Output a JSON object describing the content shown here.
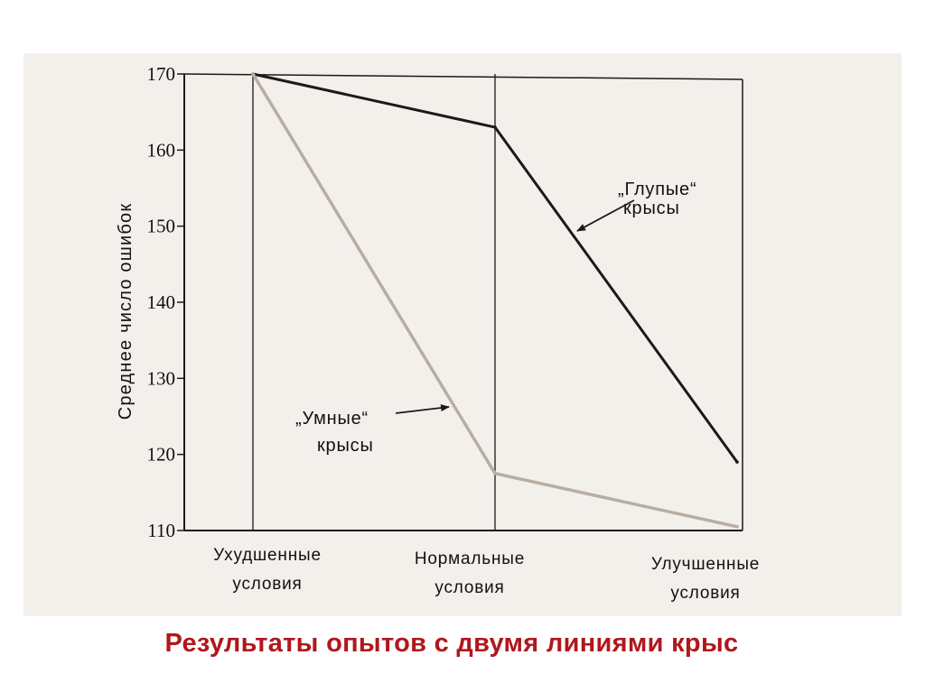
{
  "slide": {
    "caption": "Результаты опытов с двумя линиями крыс"
  },
  "colors": {
    "panel_background": "#f3f0ec",
    "caption": "#b0171d",
    "stupid_line": "#1a1a1a",
    "smart_line": "#b9ada2"
  },
  "chart_data": {
    "type": "line",
    "categories": [
      "Ухудшенные условия",
      "Нормальные условия",
      "Улучшенные условия"
    ],
    "category_labels": [
      [
        "Ухудшенные",
        "условия"
      ],
      [
        "Нормальные",
        "условия"
      ],
      [
        "Улучшенные",
        "условия"
      ]
    ],
    "ylabel": "Среднее число ошибок",
    "xlabel": "",
    "title": "",
    "ylim": [
      110,
      170
    ],
    "yticks": [
      110,
      120,
      130,
      140,
      150,
      160,
      170
    ],
    "grid": false,
    "series": [
      {
        "name": "„Глупые“ крысы",
        "label_lines": [
          "„Глупые“",
          "крысы"
        ],
        "values": [
          170,
          163,
          119
        ],
        "color": "#1a1a1a"
      },
      {
        "name": "„Умные“ крысы",
        "label_lines": [
          "„Умные“",
          "крысы"
        ],
        "values": [
          170,
          117.5,
          110.5
        ],
        "color": "#b9ada2"
      }
    ]
  }
}
